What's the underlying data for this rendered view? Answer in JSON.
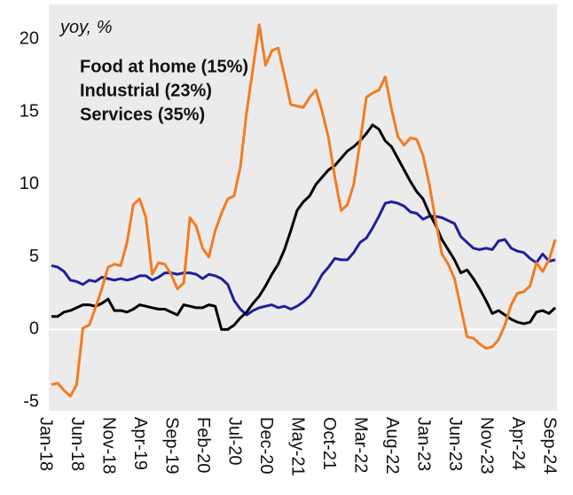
{
  "chart_data": {
    "type": "line",
    "annotation": "yoy, %",
    "categories": [
      "Jan-18",
      null,
      null,
      null,
      null,
      "Jun-18",
      null,
      null,
      null,
      null,
      "Nov-18",
      null,
      null,
      null,
      null,
      "Apr-19",
      null,
      null,
      null,
      null,
      "Sep-19",
      null,
      null,
      null,
      null,
      "Feb-20",
      null,
      null,
      null,
      null,
      "Jul-20",
      null,
      null,
      null,
      null,
      "Dec-20",
      null,
      null,
      null,
      null,
      "May-21",
      null,
      null,
      null,
      null,
      "Oct-21",
      null,
      null,
      null,
      null,
      "Mar-22",
      null,
      null,
      null,
      null,
      "Aug-22",
      null,
      null,
      null,
      null,
      "Jan-23",
      null,
      null,
      null,
      null,
      "Jun-23",
      null,
      null,
      null,
      null,
      "Nov-23",
      null,
      null,
      null,
      null,
      "Apr-24",
      null,
      null,
      null,
      null,
      "Sep-24"
    ],
    "series": [
      {
        "name": "Food at home (15%)",
        "color": "#f47b20",
        "values": [
          -3.8,
          -3.7,
          -4.2,
          -4.6,
          -3.8,
          0.1,
          0.3,
          1.5,
          2.8,
          4.3,
          4.5,
          4.4,
          6.0,
          8.6,
          9.0,
          7.7,
          3.8,
          4.6,
          4.5,
          3.8,
          2.8,
          3.2,
          7.7,
          7.1,
          5.6,
          5.0,
          6.8,
          8.0,
          9.0,
          9.2,
          11.2,
          15.0,
          18.0,
          21.0,
          18.2,
          19.2,
          19.4,
          17.5,
          15.5,
          15.4,
          15.3,
          16.0,
          16.5,
          15.0,
          13.2,
          10.5,
          8.2,
          8.6,
          10.0,
          12.9,
          16.0,
          16.3,
          16.5,
          17.4,
          15.2,
          13.3,
          12.7,
          13.2,
          13.1,
          12.0,
          10.0,
          7.5,
          5.2,
          4.5,
          3.5,
          1.5,
          -0.5,
          -0.6,
          -1.0,
          -1.3,
          -1.2,
          -0.7,
          0.3,
          1.7,
          2.5,
          2.6,
          3.0,
          4.6,
          4.0,
          4.8,
          6.2
        ]
      },
      {
        "name": "Industrial (23%)",
        "color": "#000000",
        "values": [
          0.9,
          0.9,
          1.2,
          1.3,
          1.5,
          1.7,
          1.7,
          1.6,
          1.8,
          2.1,
          1.3,
          1.3,
          1.2,
          1.4,
          1.7,
          1.6,
          1.5,
          1.4,
          1.4,
          1.2,
          1.0,
          1.7,
          1.6,
          1.5,
          1.5,
          1.7,
          1.6,
          0.0,
          0.0,
          0.3,
          0.8,
          1.2,
          1.8,
          2.3,
          3.0,
          3.8,
          4.5,
          5.5,
          6.8,
          8.2,
          8.8,
          9.2,
          10.0,
          10.5,
          11.0,
          11.3,
          11.8,
          12.3,
          12.6,
          13.0,
          13.5,
          14.1,
          13.8,
          13.0,
          12.6,
          11.8,
          11.0,
          10.2,
          9.5,
          9.0,
          8.0,
          7.2,
          6.2,
          5.5,
          4.8,
          3.9,
          4.1,
          3.5,
          2.8,
          2.0,
          1.1,
          1.3,
          1.0,
          0.7,
          0.5,
          0.4,
          0.5,
          1.2,
          1.3,
          1.1,
          1.5
        ]
      },
      {
        "name": "Services (35%)",
        "color": "#1f1fa0",
        "values": [
          4.4,
          4.3,
          4.0,
          3.4,
          3.3,
          3.1,
          3.4,
          3.3,
          3.6,
          3.5,
          3.4,
          3.5,
          3.4,
          3.5,
          3.7,
          3.7,
          3.4,
          3.6,
          3.9,
          3.9,
          3.8,
          3.9,
          3.9,
          3.8,
          3.5,
          3.8,
          3.7,
          3.5,
          3.1,
          2.0,
          1.4,
          1.0,
          1.3,
          1.5,
          1.6,
          1.7,
          1.5,
          1.6,
          1.4,
          1.6,
          1.9,
          2.3,
          3.0,
          3.8,
          4.3,
          4.9,
          4.8,
          4.8,
          5.3,
          6.0,
          6.3,
          7.0,
          7.8,
          8.7,
          8.8,
          8.7,
          8.5,
          8.1,
          8.0,
          7.6,
          7.8,
          7.8,
          7.7,
          7.5,
          7.3,
          6.4,
          6.0,
          5.6,
          5.5,
          5.6,
          5.5,
          6.1,
          6.2,
          5.6,
          5.4,
          5.3,
          4.9,
          4.6,
          5.2,
          4.7,
          4.8
        ]
      }
    ],
    "ylim": [
      -5.6,
      22.4
    ],
    "yticks": [
      -5,
      0,
      5,
      10,
      15,
      20
    ],
    "zero_line": true,
    "legend": "upper left"
  }
}
